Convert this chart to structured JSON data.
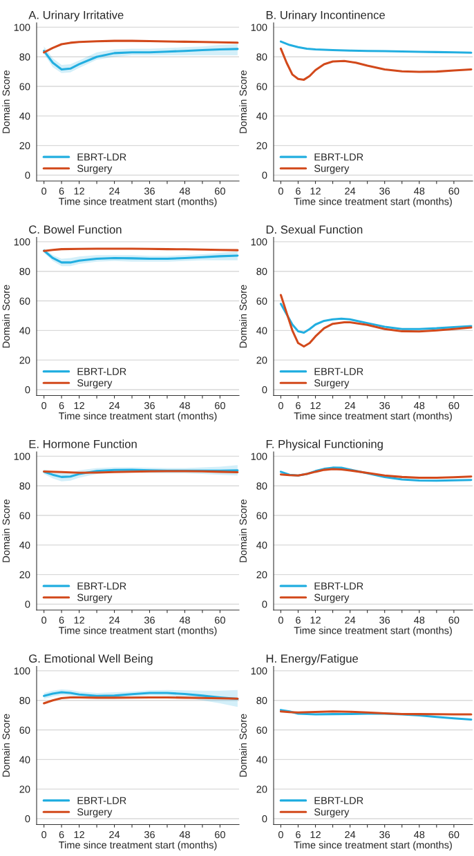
{
  "chart_data": [
    {
      "type": "line",
      "title": "A. Urinary Irritative",
      "xlabel": "Time since treatment start (months)",
      "ylabel": "Domain Score",
      "xlim": [
        -2.5,
        66.5
      ],
      "xticks": [
        0,
        6,
        12,
        {
          "value": 18,
          "label": null
        },
        24,
        {
          "value": 30,
          "label": null
        },
        36,
        {
          "value": 42,
          "label": null
        },
        48,
        {
          "value": 54,
          "label": null
        },
        60
      ],
      "ylim": [
        -4,
        103
      ],
      "yticks": [
        0,
        20,
        40,
        60,
        80,
        100
      ],
      "grid": "y",
      "legend": "bottom left",
      "series": [
        {
          "name": "EBRT-LDR",
          "color": "#22aee0",
          "x": [
            0,
            3,
            6,
            9,
            12,
            18,
            24,
            30,
            36,
            42,
            48,
            54,
            60,
            66
          ],
          "values": [
            84,
            76,
            71.5,
            72,
            75,
            80,
            82.5,
            83,
            83,
            83.5,
            84,
            84.5,
            85,
            85.3
          ],
          "lower": [
            82,
            73,
            69,
            69.5,
            72.5,
            78,
            80,
            81,
            81,
            81,
            81,
            81,
            81,
            81
          ],
          "upper": [
            87,
            79,
            74.5,
            75,
            77.5,
            83,
            85,
            85.5,
            85.5,
            86,
            86.5,
            87,
            88,
            88.5
          ]
        },
        {
          "name": "Surgery",
          "color": "#d2491b",
          "x": [
            0,
            3,
            6,
            9,
            12,
            18,
            24,
            30,
            36,
            42,
            48,
            54,
            60,
            66
          ],
          "values": [
            83,
            86,
            88.5,
            89.5,
            90,
            90.5,
            90.8,
            90.8,
            90.6,
            90.4,
            90.2,
            90,
            89.8,
            89.6
          ]
        }
      ]
    },
    {
      "type": "line",
      "title": "B. Urinary Incontinence",
      "xlabel": "Time since treatment start (months)",
      "ylabel": "Domain Score",
      "xlim": [
        -2.5,
        66.5
      ],
      "xticks": [
        0,
        6,
        12,
        {
          "value": 18,
          "label": null
        },
        24,
        {
          "value": 30,
          "label": null
        },
        36,
        {
          "value": 42,
          "label": null
        },
        48,
        {
          "value": 54,
          "label": null
        },
        60
      ],
      "ylim": [
        -4,
        103
      ],
      "yticks": [
        0,
        20,
        40,
        60,
        80,
        100
      ],
      "grid": "y",
      "legend": "bottom left",
      "series": [
        {
          "name": "EBRT-LDR",
          "color": "#22aee0",
          "x": [
            0,
            3,
            6,
            9,
            12,
            18,
            24,
            30,
            36,
            42,
            48,
            54,
            60,
            66
          ],
          "values": [
            90.3,
            88,
            86.5,
            85.5,
            85,
            84.5,
            84.2,
            84,
            83.8,
            83.6,
            83.4,
            83.2,
            83,
            82.8
          ]
        },
        {
          "name": "Surgery",
          "color": "#d2491b",
          "x": [
            0,
            2,
            4,
            6,
            8,
            10,
            12,
            15,
            18,
            22,
            26,
            30,
            36,
            42,
            48,
            54,
            60,
            66
          ],
          "values": [
            85.5,
            76,
            68,
            65,
            64.5,
            67,
            71,
            75,
            76.8,
            77.2,
            76,
            74,
            71.5,
            70.2,
            69.8,
            70,
            70.8,
            71.5
          ]
        }
      ]
    },
    {
      "type": "line",
      "title": "C. Bowel Function",
      "xlabel": "Time since treatment start (months)",
      "ylabel": "Domain Score",
      "xlim": [
        -2.5,
        66.5
      ],
      "xticks": [
        0,
        6,
        12,
        {
          "value": 18,
          "label": null
        },
        24,
        {
          "value": 30,
          "label": null
        },
        36,
        {
          "value": 42,
          "label": null
        },
        48,
        {
          "value": 54,
          "label": null
        },
        60
      ],
      "ylim": [
        -4,
        103
      ],
      "yticks": [
        0,
        20,
        40,
        60,
        80,
        100
      ],
      "grid": "y",
      "legend": "bottom left",
      "series": [
        {
          "name": "EBRT-LDR",
          "color": "#22aee0",
          "x": [
            0,
            3,
            6,
            9,
            12,
            18,
            24,
            30,
            36,
            42,
            48,
            54,
            60,
            66
          ],
          "values": [
            94,
            89,
            86,
            86,
            87.2,
            88.5,
            89,
            88.8,
            88.5,
            88.5,
            89,
            89.6,
            90.2,
            90.6
          ],
          "lower": [
            92.5,
            87,
            83.5,
            83.5,
            85,
            86.5,
            87,
            86.5,
            86.5,
            86.5,
            87,
            87.5,
            87.5,
            87.5
          ],
          "upper": [
            95.5,
            91,
            88.5,
            89,
            90,
            91,
            91,
            91,
            90.5,
            90.5,
            91,
            91.5,
            92.5,
            93.5
          ]
        },
        {
          "name": "Surgery",
          "color": "#d2491b",
          "x": [
            0,
            3,
            6,
            12,
            18,
            24,
            30,
            36,
            42,
            48,
            54,
            60,
            66
          ],
          "values": [
            93.8,
            94.5,
            95,
            95.2,
            95.3,
            95.3,
            95.3,
            95.2,
            95,
            94.9,
            94.7,
            94.5,
            94.3
          ]
        }
      ]
    },
    {
      "type": "line",
      "title": "D. Sexual Function",
      "xlabel": "Time since treatment start (months)",
      "ylabel": "Domain Score",
      "xlim": [
        -2.5,
        66.5
      ],
      "xticks": [
        0,
        6,
        12,
        {
          "value": 18,
          "label": null
        },
        24,
        {
          "value": 30,
          "label": null
        },
        36,
        {
          "value": 42,
          "label": null
        },
        48,
        {
          "value": 54,
          "label": null
        },
        60
      ],
      "ylim": [
        -4,
        103
      ],
      "yticks": [
        0,
        20,
        40,
        60,
        80,
        100
      ],
      "grid": "y",
      "legend": "bottom left",
      "series": [
        {
          "name": "EBRT-LDR",
          "color": "#22aee0",
          "x": [
            0,
            2,
            4,
            6,
            8,
            10,
            12,
            15,
            18,
            21,
            24,
            30,
            36,
            42,
            48,
            54,
            60,
            66
          ],
          "values": [
            58,
            51,
            44,
            39.5,
            38.5,
            41,
            44,
            46.5,
            47.5,
            48,
            47.5,
            45,
            42.5,
            41,
            41,
            41.5,
            42.3,
            43
          ]
        },
        {
          "name": "Surgery",
          "color": "#d2491b",
          "x": [
            0,
            2,
            4,
            6,
            8,
            10,
            12,
            15,
            18,
            22,
            24,
            30,
            36,
            42,
            48,
            54,
            60,
            66
          ],
          "values": [
            64,
            52,
            40,
            31.5,
            29.2,
            31.5,
            36,
            41.5,
            44.5,
            45.5,
            45.5,
            43.8,
            41,
            39.5,
            39.3,
            40,
            41,
            42
          ]
        }
      ]
    },
    {
      "type": "line",
      "title": "E. Hormone Function",
      "xlabel": "Time since treatment start (months)",
      "ylabel": "Domain Score",
      "xlim": [
        -2.5,
        66.5
      ],
      "xticks": [
        0,
        6,
        12,
        {
          "value": 18,
          "label": null
        },
        24,
        {
          "value": 30,
          "label": null
        },
        36,
        {
          "value": 42,
          "label": null
        },
        48,
        {
          "value": 54,
          "label": null
        },
        60
      ],
      "ylim": [
        -4,
        103
      ],
      "yticks": [
        0,
        20,
        40,
        60,
        80,
        100
      ],
      "grid": "y",
      "legend": "bottom left",
      "series": [
        {
          "name": "EBRT-LDR",
          "color": "#22aee0",
          "x": [
            0,
            3,
            6,
            9,
            12,
            18,
            24,
            30,
            36,
            42,
            48,
            54,
            60,
            66
          ],
          "values": [
            89.5,
            87.5,
            86,
            86.3,
            88,
            90,
            90.7,
            90.8,
            90.5,
            90.3,
            90.2,
            90.2,
            90.3,
            90.5
          ],
          "lower": [
            88,
            85,
            83,
            83.5,
            85.5,
            88,
            89,
            89,
            88.8,
            88.5,
            88.5,
            88,
            87.5,
            87
          ],
          "upper": [
            91,
            90,
            89,
            89,
            90.5,
            92,
            92.5,
            92.5,
            92.2,
            92,
            92,
            92.5,
            93,
            94
          ]
        },
        {
          "name": "Surgery",
          "color": "#d2491b",
          "x": [
            0,
            6,
            12,
            18,
            24,
            30,
            36,
            42,
            48,
            54,
            60,
            66
          ],
          "values": [
            89.7,
            89.3,
            88.9,
            89,
            89.3,
            89.6,
            89.8,
            89.9,
            89.9,
            89.8,
            89.5,
            89.2
          ]
        }
      ]
    },
    {
      "type": "line",
      "title": "F. Physical Functioning",
      "xlabel": "Time since treatment start (months)",
      "ylabel": "Domain Score",
      "xlim": [
        -2.5,
        66.5
      ],
      "xticks": [
        0,
        6,
        12,
        {
          "value": 18,
          "label": null
        },
        24,
        {
          "value": 30,
          "label": null
        },
        36,
        {
          "value": 42,
          "label": null
        },
        48,
        {
          "value": 54,
          "label": null
        },
        60
      ],
      "ylim": [
        -4,
        103
      ],
      "yticks": [
        0,
        20,
        40,
        60,
        80,
        100
      ],
      "grid": "y",
      "legend": "bottom left",
      "series": [
        {
          "name": "EBRT-LDR",
          "color": "#22aee0",
          "x": [
            0,
            3,
            6,
            9,
            12,
            15,
            18,
            21,
            24,
            30,
            36,
            42,
            48,
            54,
            60,
            66
          ],
          "values": [
            89.5,
            87.5,
            87,
            88,
            90,
            91.5,
            92.3,
            92.2,
            91,
            88.5,
            86,
            84.3,
            83.6,
            83.5,
            83.7,
            84
          ]
        },
        {
          "name": "Surgery",
          "color": "#d2491b",
          "x": [
            0,
            3,
            6,
            9,
            12,
            15,
            18,
            21,
            24,
            30,
            36,
            42,
            48,
            54,
            60,
            66
          ],
          "values": [
            87.7,
            87.2,
            87,
            88,
            89.5,
            90.8,
            91.3,
            91.1,
            90.4,
            88.8,
            87,
            86,
            85.5,
            85.5,
            85.8,
            86.3
          ]
        }
      ]
    },
    {
      "type": "line",
      "title": "G. Emotional Well Being",
      "xlabel": "Time since treatment start (months)",
      "ylabel": "Domain Score",
      "xlim": [
        -2.5,
        66.5
      ],
      "xticks": [
        0,
        6,
        12,
        {
          "value": 18,
          "label": null
        },
        24,
        {
          "value": 30,
          "label": null
        },
        36,
        {
          "value": 42,
          "label": null
        },
        48,
        {
          "value": 54,
          "label": null
        },
        60
      ],
      "ylim": [
        -4,
        103
      ],
      "yticks": [
        0,
        20,
        40,
        60,
        80,
        100
      ],
      "grid": "y",
      "legend": "bottom left",
      "series": [
        {
          "name": "EBRT-LDR",
          "color": "#22aee0",
          "x": [
            0,
            3,
            6,
            9,
            12,
            18,
            24,
            30,
            36,
            42,
            48,
            54,
            60,
            66
          ],
          "values": [
            83,
            84.5,
            85.5,
            85,
            84,
            83,
            83.2,
            84.2,
            85,
            85,
            84.3,
            83.2,
            82,
            81
          ],
          "lower": [
            81,
            82.5,
            83.5,
            83,
            82,
            81,
            81,
            82.5,
            83.3,
            83,
            82,
            80,
            78,
            75.5
          ],
          "upper": [
            85,
            86.5,
            87.5,
            87,
            86,
            85,
            85.5,
            86,
            86.8,
            87,
            86.8,
            86.5,
            86.5,
            87
          ]
        },
        {
          "name": "Surgery",
          "color": "#d2491b",
          "x": [
            0,
            3,
            6,
            9,
            12,
            18,
            24,
            30,
            36,
            42,
            48,
            54,
            60,
            66
          ],
          "values": [
            78,
            80,
            81.5,
            82,
            82,
            81.8,
            81.8,
            81.9,
            82,
            82,
            81.8,
            81.6,
            81.4,
            81.2
          ]
        }
      ]
    },
    {
      "type": "line",
      "title": "H. Energy/Fatigue",
      "xlabel": "Time since treatment start (months)",
      "ylabel": "Domain Score",
      "xlim": [
        -2.5,
        66.5
      ],
      "xticks": [
        0,
        6,
        12,
        {
          "value": 18,
          "label": null
        },
        24,
        {
          "value": 30,
          "label": null
        },
        36,
        {
          "value": 42,
          "label": null
        },
        48,
        {
          "value": 54,
          "label": null
        },
        60
      ],
      "ylim": [
        -4,
        103
      ],
      "yticks": [
        0,
        20,
        40,
        60,
        80,
        100
      ],
      "grid": "y",
      "legend": "bottom left",
      "series": [
        {
          "name": "EBRT-LDR",
          "color": "#22aee0",
          "x": [
            0,
            3,
            6,
            12,
            18,
            24,
            30,
            36,
            42,
            48,
            54,
            60,
            66
          ],
          "values": [
            73.5,
            72.5,
            71,
            70.5,
            70.7,
            70.8,
            71,
            71,
            70.5,
            69.8,
            68.8,
            67.8,
            67
          ]
        },
        {
          "name": "Surgery",
          "color": "#d2491b",
          "x": [
            0,
            3,
            6,
            12,
            18,
            24,
            30,
            36,
            42,
            48,
            54,
            60,
            66
          ],
          "values": [
            72.5,
            72,
            71.8,
            72.2,
            72.5,
            72.3,
            71.8,
            71.2,
            70.8,
            70.7,
            70.6,
            70.5,
            70.5
          ]
        }
      ]
    }
  ]
}
